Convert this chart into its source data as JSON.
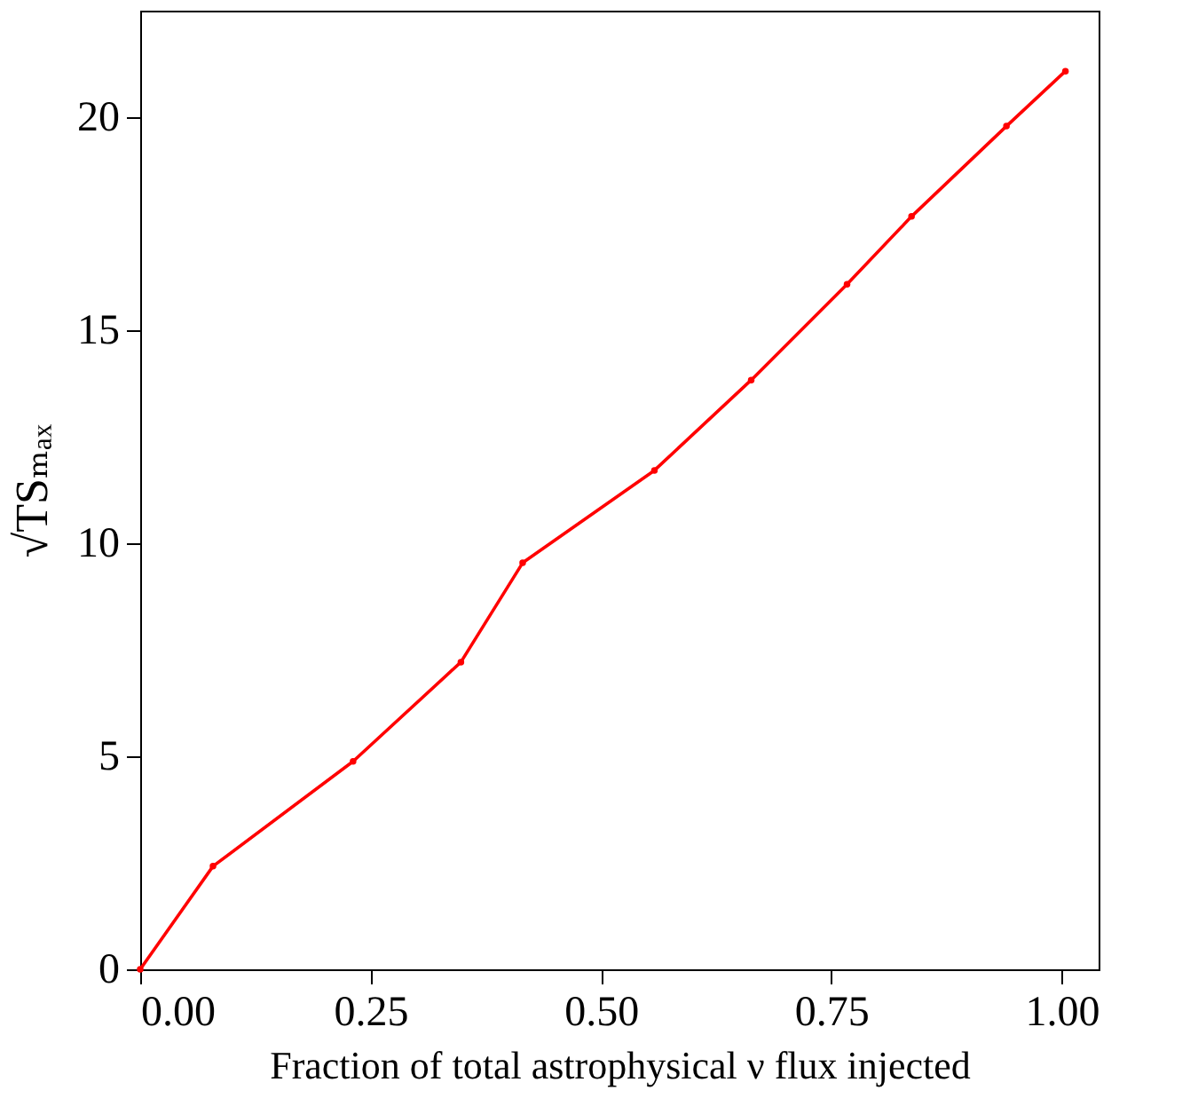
{
  "chart_data": {
    "type": "line",
    "xlabel": "Fraction of total astrophysical ν flux injected",
    "ylabel": "√TSₘₐₓ",
    "x": [
      0,
      0.079,
      0.231,
      0.348,
      0.415,
      0.558,
      0.663,
      0.767,
      0.837,
      0.94,
      1.004
    ],
    "series": [
      {
        "color": "#ff0000",
        "values": [
          0,
          2.42,
          4.88,
          7.21,
          9.54,
          11.71,
          13.83,
          16.08,
          17.67,
          19.79,
          21.08
        ]
      }
    ],
    "xlim": [
      0,
      1.04
    ],
    "ylim": [
      0,
      22.5
    ],
    "xticks": [
      {
        "value": 0,
        "label": "0.00"
      },
      {
        "value": 0.25,
        "label": "0.25"
      },
      {
        "value": 0.5,
        "label": "0.50"
      },
      {
        "value": 0.75,
        "label": "0.75"
      },
      {
        "value": 1,
        "label": "1.00"
      }
    ],
    "yticks": [
      0,
      5,
      10,
      15,
      20
    ],
    "grid": false,
    "marker": "circle",
    "line_style": "solid"
  }
}
